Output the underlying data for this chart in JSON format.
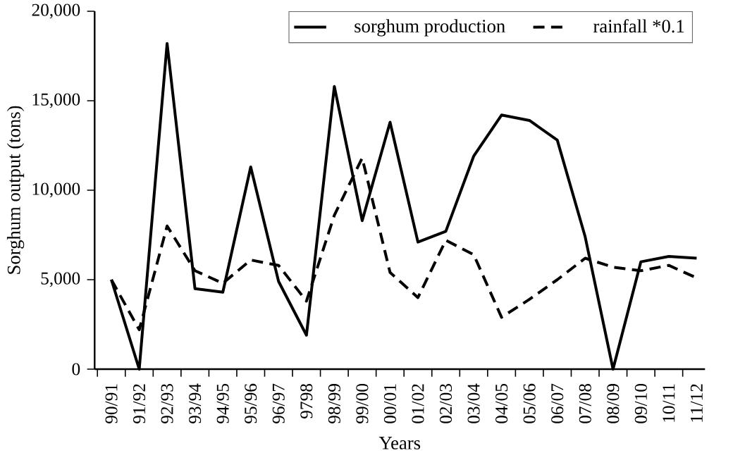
{
  "chart_data": {
    "type": "line",
    "xlabel": "Years",
    "ylabel": "Sorghum output (tons)",
    "categories": [
      "90/91",
      "91/92",
      "92/93",
      "93/94",
      "94/95",
      "95/96",
      "96/97",
      "9798",
      "98/99",
      "99/00",
      "00/01",
      "01/02",
      "02/03",
      "03/04",
      "04/05",
      "05/06",
      "06/07",
      "07/08",
      "08/09",
      "09/10",
      "10/11",
      "11/12"
    ],
    "series": [
      {
        "name": "sorghum production",
        "color": "#000000",
        "line_style": "solid",
        "values": [
          5000,
          0,
          18200,
          4500,
          4300,
          11300,
          4900,
          1900,
          15800,
          8300,
          13800,
          7100,
          7700,
          11900,
          14200,
          13900,
          12800,
          7400,
          0,
          6000,
          6300,
          6200
        ]
      },
      {
        "name": "rainfall *0.1",
        "color": "#000000",
        "line_style": "dashed",
        "values": [
          5000,
          2200,
          8000,
          5500,
          4800,
          6100,
          5800,
          3800,
          8600,
          11800,
          5400,
          4000,
          7200,
          6400,
          2900,
          3900,
          5000,
          6200,
          5700,
          5500,
          5800,
          5100
        ]
      }
    ],
    "ylim": [
      0,
      20000
    ],
    "yticks": [
      0,
      {
        "value": 5000,
        "label": "5,000"
      },
      {
        "value": 10000,
        "label": "10,000"
      },
      {
        "value": 15000,
        "label": "15,000"
      },
      {
        "value": 20000,
        "label": "20,000"
      }
    ],
    "legend": "top right",
    "grid": false,
    "marker": "none"
  }
}
